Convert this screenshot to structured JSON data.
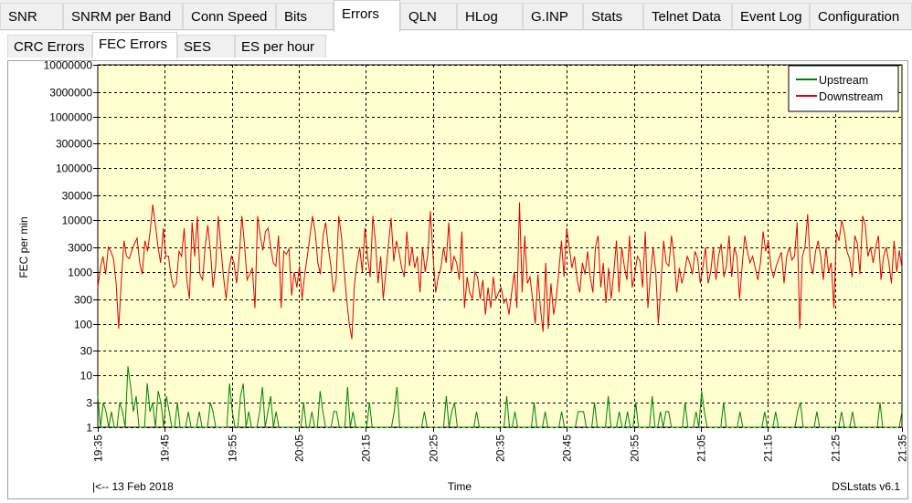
{
  "tabs": [
    {
      "label": "SNR",
      "active": false
    },
    {
      "label": "SNRM per Band",
      "active": false
    },
    {
      "label": "Conn Speed",
      "active": false
    },
    {
      "label": "Bits",
      "active": false
    },
    {
      "label": "Errors",
      "active": true
    },
    {
      "label": "QLN",
      "active": false
    },
    {
      "label": "HLog",
      "active": false
    },
    {
      "label": "G.INP",
      "active": false
    },
    {
      "label": "Stats",
      "active": false
    },
    {
      "label": "Telnet Data",
      "active": false
    },
    {
      "label": "Event Log",
      "active": false
    },
    {
      "label": "Configuration",
      "active": false
    }
  ],
  "subtabs": [
    {
      "label": "CRC Errors",
      "active": false
    },
    {
      "label": "FEC Errors",
      "active": true
    },
    {
      "label": "SES",
      "active": false
    },
    {
      "label": "ES per hour",
      "active": false
    }
  ],
  "footer": {
    "left_label": "|<-- 13 Feb 2018",
    "right_label": "DSLstats v6.1"
  },
  "chart_data": {
    "type": "line",
    "xlabel": "Time",
    "ylabel": "FEC per min",
    "yscale": "log",
    "ylim": [
      1,
      10000000
    ],
    "y_ticks": [
      {
        "value": 1,
        "label": "1"
      },
      {
        "value": 3,
        "label": "3"
      },
      {
        "value": 10,
        "label": "10"
      },
      {
        "value": 30,
        "label": "30"
      },
      {
        "value": 100,
        "label": "100"
      },
      {
        "value": 300,
        "label": "300"
      },
      {
        "value": 1000,
        "label": "1000"
      },
      {
        "value": 3000,
        "label": "3000"
      },
      {
        "value": 10000,
        "label": "10000"
      },
      {
        "value": 30000,
        "label": "30000"
      },
      {
        "value": 100000,
        "label": "100000"
      },
      {
        "value": 300000,
        "label": "300000"
      },
      {
        "value": 1000000,
        "label": "1000000"
      },
      {
        "value": 3000000,
        "label": "3000000"
      },
      {
        "value": 10000000,
        "label": "10000000"
      }
    ],
    "x_ticks": [
      "19:35",
      "19:45",
      "19:55",
      "20:05",
      "20:15",
      "20:25",
      "20:35",
      "20:45",
      "20:55",
      "21:05",
      "21:15",
      "21:25",
      "21:35"
    ],
    "grid": true,
    "legend_position": "top-right",
    "background": "#ffffd0",
    "series": [
      {
        "name": "Upstream",
        "color": "#008000",
        "values": [
          4,
          1,
          3,
          2,
          1,
          2,
          1,
          1,
          3,
          2,
          1,
          15,
          6,
          2,
          4,
          1,
          1,
          1,
          7,
          2,
          3,
          1,
          5,
          3,
          1,
          4,
          2,
          1,
          1,
          3,
          1,
          1,
          1,
          2,
          1,
          1,
          1,
          2,
          1,
          1,
          1,
          3,
          2,
          1,
          1,
          1,
          1,
          1,
          7,
          2,
          1,
          1,
          4,
          7,
          1,
          2,
          1,
          1,
          1,
          2,
          6,
          1,
          2,
          4,
          1,
          2,
          1,
          1,
          1,
          1,
          1,
          1,
          1,
          1,
          1,
          3,
          1,
          1,
          2,
          1,
          1,
          5,
          2,
          1,
          1,
          1,
          2,
          2,
          1,
          1,
          1,
          6,
          1,
          2,
          1,
          1,
          1,
          1,
          1,
          3,
          1,
          1,
          1,
          1,
          1,
          1,
          1,
          1,
          2,
          6,
          1,
          1,
          1,
          1,
          1,
          1,
          1,
          1,
          1,
          2,
          1,
          1,
          1,
          1,
          1,
          1,
          1,
          4,
          1,
          2,
          3,
          1,
          1,
          1,
          1,
          1,
          1,
          1,
          2,
          1,
          1,
          1,
          1,
          1,
          1,
          1,
          1,
          1,
          1,
          4,
          1,
          1,
          2,
          1,
          1,
          1,
          1,
          1,
          1,
          3,
          1,
          1,
          1,
          2,
          1,
          1,
          1,
          1,
          1,
          2,
          1,
          1,
          1,
          1,
          1,
          2,
          2,
          2,
          1,
          1,
          1,
          3,
          1,
          1,
          1,
          1,
          4,
          1,
          1,
          1,
          2,
          1,
          1,
          2,
          1,
          1,
          3,
          1,
          1,
          1,
          1,
          1,
          4,
          1,
          1,
          2,
          1,
          2,
          2,
          1,
          1,
          1,
          1,
          1,
          3,
          1,
          1,
          1,
          2,
          1,
          5,
          2,
          1,
          1,
          1,
          1,
          1,
          1,
          3,
          1,
          1,
          1,
          1,
          1,
          2,
          1,
          1,
          1,
          1,
          1,
          1,
          1,
          1,
          2,
          1,
          1,
          1,
          2,
          1,
          1,
          1,
          1,
          1,
          1,
          1,
          2,
          3,
          1,
          1,
          1,
          1,
          1,
          2,
          1,
          1,
          1,
          1,
          1,
          1,
          1,
          1,
          2,
          1,
          1,
          1,
          2,
          1,
          1,
          1,
          1,
          1,
          1,
          1,
          1,
          1,
          3,
          1,
          1,
          1,
          1,
          1,
          1,
          1,
          2
        ]
      },
      {
        "name": "Downstream",
        "color": "#e00000",
        "values": [
          500,
          1200,
          2000,
          900,
          3000,
          2500,
          1800,
          600,
          80,
          700,
          4000,
          2000,
          1800,
          2600,
          3500,
          4500,
          1500,
          900,
          4000,
          2500,
          6000,
          20000,
          8000,
          3000,
          1500,
          7000,
          2000,
          2000,
          800,
          500,
          600,
          2500,
          2000,
          7000,
          700,
          300,
          9000,
          2000,
          12000,
          900,
          700,
          3000,
          8000,
          2500,
          500,
          1300,
          12000,
          3000,
          800,
          300,
          1000,
          2000,
          1500,
          600,
          2000,
          12000,
          3500,
          700,
          900,
          1200,
          200,
          12000,
          5000,
          2600,
          6000,
          7000,
          3000,
          1500,
          1300,
          5000,
          200,
          2500,
          2200,
          2800,
          350,
          1000,
          500,
          1300,
          300,
          900,
          2000,
          5000,
          12000,
          6000,
          1500,
          900,
          5000,
          9000,
          3000,
          1300,
          400,
          700,
          12000,
          5000,
          1200,
          300,
          100,
          50,
          600,
          1500,
          3000,
          1000,
          7000,
          2000,
          800,
          12000,
          4000,
          600,
          2000,
          300,
          1000,
          3500,
          11000,
          1600,
          4000,
          2500,
          1200,
          800,
          6000,
          1300,
          3000,
          1200,
          2000,
          400,
          3000,
          1000,
          2200,
          15000,
          2000,
          400,
          800,
          1200,
          3000,
          1500,
          9000,
          1000,
          2000,
          1500,
          700,
          6000,
          200,
          800,
          400,
          300,
          1000,
          800,
          300,
          700,
          150,
          500,
          200,
          800,
          300,
          400,
          500,
          250,
          300,
          150,
          400,
          1000,
          200,
          22000,
          400,
          5000,
          600,
          800,
          300,
          100,
          900,
          200,
          70,
          1500,
          80,
          600,
          150,
          300,
          1000,
          4000,
          800,
          7000,
          3000,
          1200,
          2000,
          700,
          400,
          1500,
          900,
          2500,
          800,
          400,
          3000,
          5000,
          500,
          1500,
          250,
          1200,
          300,
          1000,
          4000,
          400,
          3000,
          1300,
          700,
          5000,
          500,
          900,
          2000,
          1600,
          500,
          6000,
          200,
          900,
          3000,
          1000,
          100,
          600,
          4000,
          1500,
          1300,
          5000,
          2000,
          400,
          1200,
          600,
          1000,
          2000,
          1500,
          900,
          2500,
          1800,
          600,
          1200,
          3000,
          600,
          1000,
          3000,
          700,
          2000,
          3500,
          800,
          1300,
          5000,
          800,
          3000,
          2000,
          300,
          1300,
          5000,
          2500,
          1500,
          2000,
          1200,
          700,
          1500,
          6000,
          2500,
          4000,
          1200,
          800,
          1300,
          1800,
          2400,
          600,
          2000,
          3000,
          1700,
          2000,
          9000,
          80,
          2000,
          3000,
          13000,
          1500,
          900,
          2500,
          4000,
          2000,
          700,
          3000,
          1000,
          1500,
          200,
          6000,
          4000,
          10000,
          6000,
          2500,
          1800,
          800,
          5000,
          3500,
          900,
          12000,
          8000,
          2000,
          3000,
          1500,
          3000,
          5000,
          700,
          2000,
          3000,
          1500,
          600,
          4000,
          1000,
          2600,
          1200
        ]
      }
    ]
  }
}
